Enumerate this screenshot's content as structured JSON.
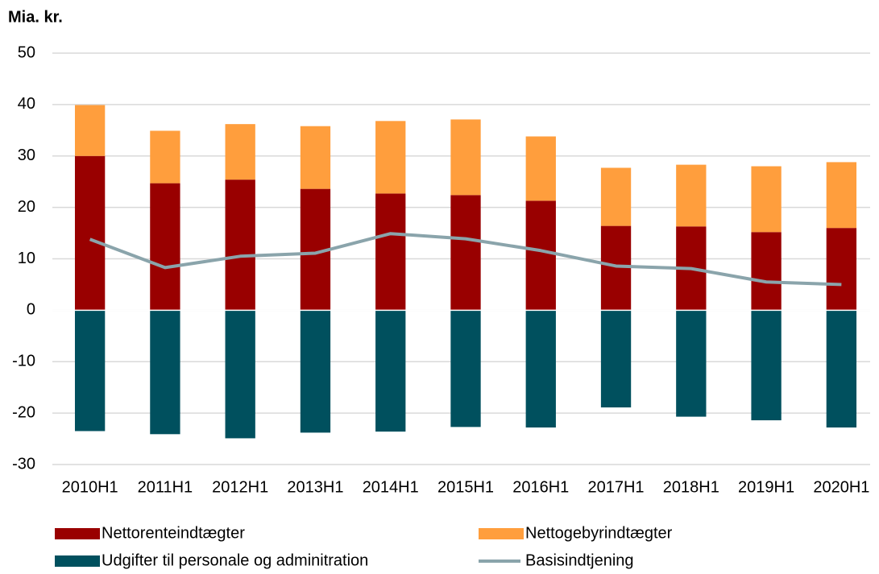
{
  "chart_data": {
    "type": "bar",
    "title": "Mia. kr.",
    "categories": [
      "2010H1",
      "2011H1",
      "2012H1",
      "2013H1",
      "2014H1",
      "2015H1",
      "2016H1",
      "2017H1",
      "2018H1",
      "2019H1",
      "2020H1"
    ],
    "series": [
      {
        "name": "Nettorenteindtægter",
        "color": "#990000",
        "type": "bar",
        "values": [
          30.0,
          24.7,
          25.4,
          23.6,
          22.7,
          22.4,
          21.3,
          16.4,
          16.3,
          15.2,
          16.0
        ]
      },
      {
        "name": "Nettogebyrindtægter",
        "color": "#ff9e3d",
        "type": "bar",
        "values": [
          9.9,
          10.2,
          10.8,
          12.2,
          14.1,
          14.7,
          12.5,
          11.3,
          12.0,
          12.8,
          12.8
        ]
      },
      {
        "name": "Udgifter til personale og adminitration",
        "color": "#00505e",
        "type": "bar",
        "values": [
          -23.5,
          -24.1,
          -24.9,
          -23.8,
          -23.6,
          -22.7,
          -22.8,
          -18.9,
          -20.7,
          -21.4,
          -22.8
        ]
      },
      {
        "name": "Basisindtjening",
        "color": "#8aa4ab",
        "type": "line",
        "values": [
          13.8,
          8.3,
          10.5,
          11.1,
          14.9,
          13.9,
          11.6,
          8.6,
          8.1,
          5.5,
          5.0
        ]
      }
    ],
    "ylim": [
      -30,
      50
    ],
    "yticks": [
      -30,
      -20,
      -10,
      0,
      10,
      20,
      30,
      40,
      50
    ],
    "grid": true
  }
}
